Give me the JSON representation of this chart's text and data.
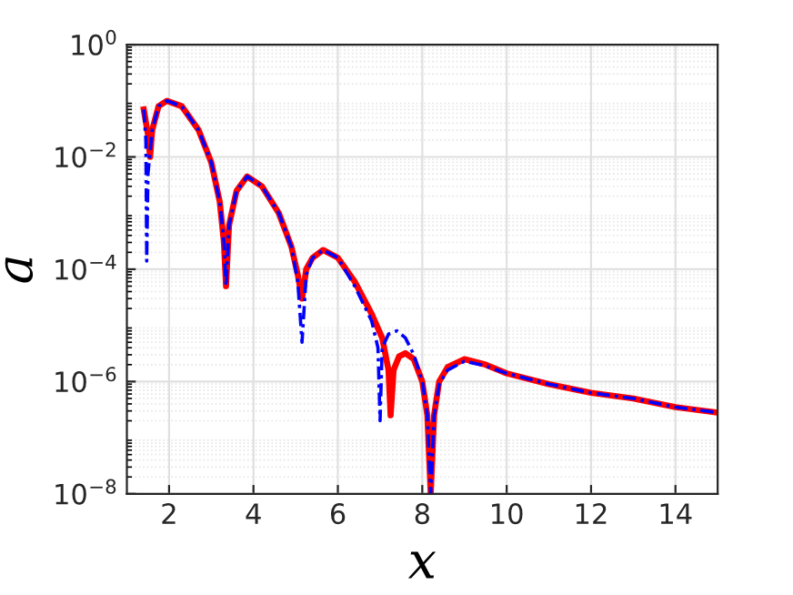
{
  "chart_data": {
    "type": "line",
    "xlabel": "x",
    "ylabel": "a",
    "log": "y",
    "grid": true,
    "xlim": [
      1,
      15
    ],
    "xticks": [
      2,
      4,
      6,
      8,
      10,
      12,
      14
    ],
    "ylim": [
      1e-08,
      1
    ],
    "yticks": [
      {
        "value": 1e-08,
        "label": "10$^{−8}$"
      },
      {
        "value": 1e-06,
        "label": "10$^{−6}$"
      },
      {
        "value": 0.0001,
        "label": "10$^{−4}$"
      },
      {
        "value": 0.01,
        "label": "10$^{−2}$"
      },
      {
        "value": 1,
        "label": "10$^{0}$"
      }
    ],
    "series": [
      {
        "color": "#ff0000",
        "line_style": "solid",
        "x": [
          1.4,
          1.5,
          1.55,
          1.6,
          1.75,
          1.95,
          2.3,
          2.7,
          3.0,
          3.2,
          3.3,
          3.35,
          3.42,
          3.6,
          3.85,
          4.2,
          4.6,
          4.9,
          5.05,
          5.15,
          5.25,
          5.4,
          5.65,
          6.0,
          6.4,
          6.8,
          7.05,
          7.2,
          7.25,
          7.32,
          7.45,
          7.6,
          7.8,
          8.0,
          8.12,
          8.2,
          8.28,
          8.4,
          8.6,
          9.0,
          9.5,
          10,
          11,
          12,
          13,
          14,
          15
        ],
        "values": [
          0.07,
          0.025,
          0.01,
          0.03,
          0.08,
          0.1,
          0.08,
          0.03,
          0.008,
          0.0016,
          0.0003,
          5e-05,
          0.0006,
          0.0025,
          0.0045,
          0.003,
          0.001,
          0.00025,
          8e-05,
          3e-05,
          0.0001,
          0.00016,
          0.00022,
          0.00016,
          6e-05,
          1.6e-05,
          6e-06,
          1.6e-06,
          2.5e-07,
          1.6e-06,
          2.8e-06,
          3.2e-06,
          2.5e-06,
          1e-06,
          2.5e-07,
          1e-08,
          2.5e-07,
          1e-06,
          1.8e-06,
          2.5e-06,
          2e-06,
          1.4e-06,
          9e-07,
          6.3e-07,
          5e-07,
          3.5e-07,
          2.8e-07
        ]
      },
      {
        "color": "#0000ff",
        "line_style": "dashed",
        "x": [
          1.4,
          1.45,
          1.47,
          1.5,
          1.6,
          1.75,
          1.95,
          2.3,
          2.7,
          3.0,
          3.2,
          3.3,
          3.35,
          3.42,
          3.6,
          3.85,
          4.2,
          4.6,
          4.9,
          5.05,
          5.15,
          5.25,
          5.4,
          5.65,
          6.0,
          6.4,
          6.8,
          6.95,
          7.0,
          7.05,
          7.2,
          7.4,
          7.6,
          7.8,
          8.0,
          8.12,
          8.2,
          8.28,
          8.4,
          8.6,
          9.0,
          9.5,
          10,
          11,
          12,
          13,
          14,
          15
        ],
        "values": [
          0.07,
          0.02,
          0.00014,
          0.005,
          0.03,
          0.08,
          0.1,
          0.08,
          0.03,
          0.008,
          0.0016,
          0.0003,
          5e-05,
          0.0006,
          0.0025,
          0.0045,
          0.003,
          0.001,
          0.00025,
          6e-05,
          5e-06,
          8e-05,
          0.00016,
          0.00022,
          0.00016,
          5e-05,
          1.2e-05,
          4e-06,
          2e-07,
          4e-06,
          7e-06,
          8e-06,
          6e-06,
          3e-06,
          1e-06,
          2.5e-07,
          1e-08,
          2.5e-07,
          9e-07,
          1.6e-06,
          2.3e-06,
          1.9e-06,
          1.4e-06,
          9e-07,
          6.3e-07,
          5e-07,
          3.5e-07,
          2.8e-07
        ]
      }
    ]
  }
}
